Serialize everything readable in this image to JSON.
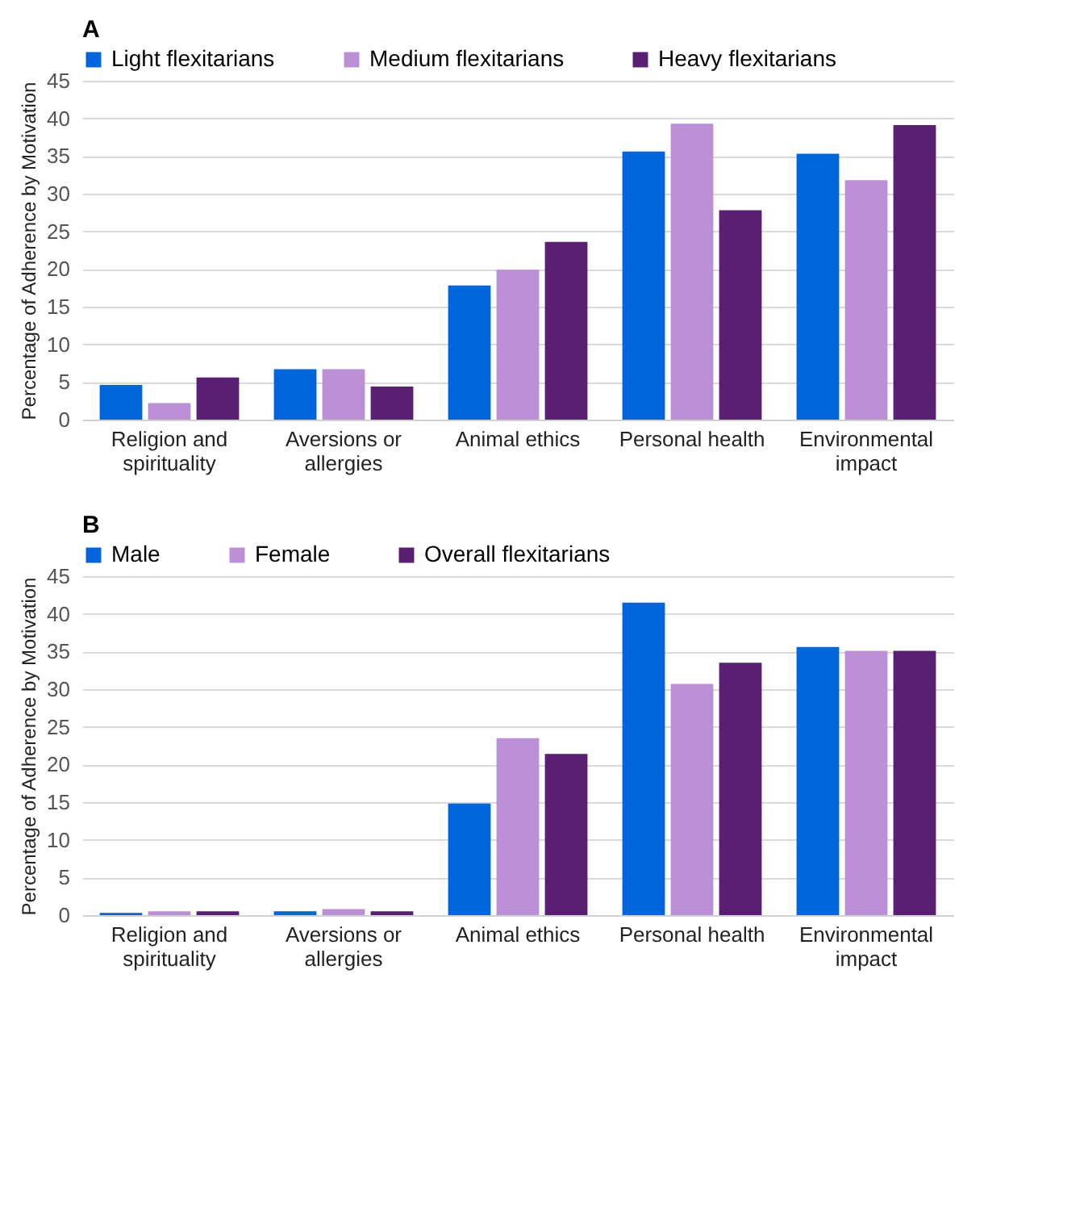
{
  "chart_data": [
    {
      "type": "bar",
      "title": "A",
      "ylabel": "Percentage of Adherence by Motivation",
      "categories": [
        "Religion and spirituality",
        "Aversions or allergies",
        "Animal ethics",
        "Personal health",
        "Environmental impact"
      ],
      "series": [
        {
          "name": "Light flexitarians",
          "color": "#0066dd",
          "values": [
            4.6,
            6.7,
            17.8,
            35.6,
            35.3
          ]
        },
        {
          "name": "Medium flexitarians",
          "color": "#bb90d6",
          "values": [
            2.2,
            6.7,
            19.9,
            39.3,
            31.8
          ]
        },
        {
          "name": "Heavy flexitarians",
          "color": "#581f72",
          "values": [
            5.6,
            4.4,
            23.6,
            27.8,
            39.1
          ]
        }
      ],
      "ylim": [
        0,
        45
      ],
      "yticks": [
        0,
        5,
        10,
        15,
        20,
        25,
        30,
        35,
        40,
        45
      ],
      "grid": "y",
      "legend": "top"
    },
    {
      "type": "bar",
      "title": "B",
      "ylabel": "Percentage of Adherence by Motivation",
      "categories": [
        "Religion and spirituality",
        "Aversions or allergies",
        "Animal ethics",
        "Personal health",
        "Environmental impact"
      ],
      "series": [
        {
          "name": "Male",
          "color": "#0066dd",
          "values": [
            0.3,
            0.5,
            14.8,
            41.5,
            35.6
          ]
        },
        {
          "name": "Female",
          "color": "#bb90d6",
          "values": [
            0.5,
            0.8,
            23.5,
            30.7,
            35.1
          ]
        },
        {
          "name": "Overall flexitarians",
          "color": "#581f72",
          "values": [
            0.5,
            0.5,
            21.4,
            33.5,
            35.1
          ]
        }
      ],
      "ylim": [
        0,
        45
      ],
      "yticks": [
        0,
        5,
        10,
        15,
        20,
        25,
        30,
        35,
        40,
        45
      ],
      "grid": "y",
      "legend": "top"
    }
  ]
}
